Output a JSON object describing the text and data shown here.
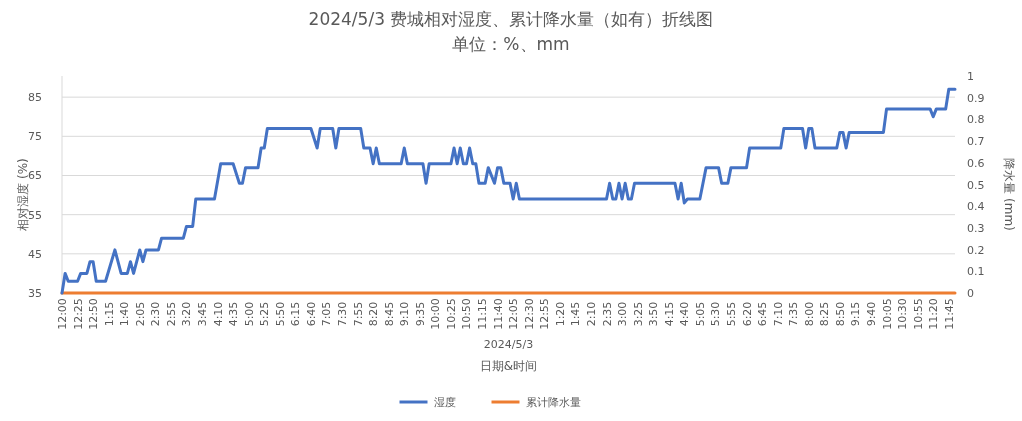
{
  "chart_data": {
    "type": "line",
    "title": "2024/5/3 费城相对湿度、累计降水量（如有）折线图",
    "subtitle": "单位：%、mm",
    "xlabel": "日期&时间",
    "ylabel": "相对湿度 (%)",
    "y2label": "降水量 (mm)",
    "annotations": [
      "2024/5/3"
    ],
    "xlim": [
      "2024-05-03T00:00",
      "2024-05-03T23:55"
    ],
    "xticks": [
      {
        "value": "2024-05-03T00:00",
        "label": "12:00"
      },
      {
        "value": "2024-05-03T00:25",
        "label": "12:25"
      },
      {
        "value": "2024-05-03T00:50",
        "label": "12:50"
      },
      {
        "value": "2024-05-03T01:15",
        "label": "1:15"
      },
      {
        "value": "2024-05-03T01:40",
        "label": "1:40"
      },
      {
        "value": "2024-05-03T02:05",
        "label": "2:05"
      },
      {
        "value": "2024-05-03T02:30",
        "label": "2:30"
      },
      {
        "value": "2024-05-03T02:55",
        "label": "2:55"
      },
      {
        "value": "2024-05-03T03:20",
        "label": "3:20"
      },
      {
        "value": "2024-05-03T03:45",
        "label": "3:45"
      },
      {
        "value": "2024-05-03T04:10",
        "label": "4:10"
      },
      {
        "value": "2024-05-03T04:35",
        "label": "4:35"
      },
      {
        "value": "2024-05-03T05:00",
        "label": "5:00"
      },
      {
        "value": "2024-05-03T05:25",
        "label": "5:25"
      },
      {
        "value": "2024-05-03T05:50",
        "label": "5:50"
      },
      {
        "value": "2024-05-03T06:15",
        "label": "6:15"
      },
      {
        "value": "2024-05-03T06:40",
        "label": "6:40"
      },
      {
        "value": "2024-05-03T07:05",
        "label": "7:05"
      },
      {
        "value": "2024-05-03T07:30",
        "label": "7:30"
      },
      {
        "value": "2024-05-03T07:55",
        "label": "7:55"
      },
      {
        "value": "2024-05-03T08:20",
        "label": "8:20"
      },
      {
        "value": "2024-05-03T08:45",
        "label": "8:45"
      },
      {
        "value": "2024-05-03T09:10",
        "label": "9:10"
      },
      {
        "value": "2024-05-03T09:35",
        "label": "9:35"
      },
      {
        "value": "2024-05-03T10:00",
        "label": "10:00"
      },
      {
        "value": "2024-05-03T10:25",
        "label": "10:25"
      },
      {
        "value": "2024-05-03T10:50",
        "label": "10:50"
      },
      {
        "value": "2024-05-03T11:15",
        "label": "11:15"
      },
      {
        "value": "2024-05-03T11:40",
        "label": "11:40"
      },
      {
        "value": "2024-05-03T12:05",
        "label": "12:05"
      },
      {
        "value": "2024-05-03T12:30",
        "label": "12:30"
      },
      {
        "value": "2024-05-03T12:55",
        "label": "12:55"
      },
      {
        "value": "2024-05-03T13:20",
        "label": "1:20"
      },
      {
        "value": "2024-05-03T13:45",
        "label": "1:45"
      },
      {
        "value": "2024-05-03T14:10",
        "label": "2:10"
      },
      {
        "value": "2024-05-03T14:35",
        "label": "2:35"
      },
      {
        "value": "2024-05-03T15:00",
        "label": "3:00"
      },
      {
        "value": "2024-05-03T15:25",
        "label": "3:25"
      },
      {
        "value": "2024-05-03T15:50",
        "label": "3:50"
      },
      {
        "value": "2024-05-03T16:15",
        "label": "4:15"
      },
      {
        "value": "2024-05-03T16:40",
        "label": "4:40"
      },
      {
        "value": "2024-05-03T17:05",
        "label": "5:05"
      },
      {
        "value": "2024-05-03T17:30",
        "label": "5:30"
      },
      {
        "value": "2024-05-03T17:55",
        "label": "5:55"
      },
      {
        "value": "2024-05-03T18:20",
        "label": "6:20"
      },
      {
        "value": "2024-05-03T18:45",
        "label": "6:45"
      },
      {
        "value": "2024-05-03T19:10",
        "label": "7:10"
      },
      {
        "value": "2024-05-03T19:35",
        "label": "7:35"
      },
      {
        "value": "2024-05-03T20:00",
        "label": "8:00"
      },
      {
        "value": "2024-05-03T20:25",
        "label": "8:25"
      },
      {
        "value": "2024-05-03T20:50",
        "label": "8:50"
      },
      {
        "value": "2024-05-03T21:15",
        "label": "9:15"
      },
      {
        "value": "2024-05-03T21:40",
        "label": "9:40"
      },
      {
        "value": "2024-05-03T22:05",
        "label": "10:05"
      },
      {
        "value": "2024-05-03T22:30",
        "label": "10:30"
      },
      {
        "value": "2024-05-03T22:55",
        "label": "10:55"
      },
      {
        "value": "2024-05-03T23:20",
        "label": "11:20"
      },
      {
        "value": "2024-05-03T23:45",
        "label": "11:45"
      }
    ],
    "ylim": [
      35,
      90.4
    ],
    "yticks": [
      35,
      45,
      55,
      65,
      75,
      85
    ],
    "y2lim": [
      0,
      1
    ],
    "y2ticks": [
      0,
      0.1,
      0.2,
      0.3,
      0.4,
      0.5,
      0.6,
      0.7,
      0.8,
      0.9,
      1
    ],
    "grid": "y",
    "legend": "bottom",
    "marker": "none",
    "line_style": "solid",
    "series": [
      {
        "name": "湿度",
        "color": "#4472c4",
        "x": [
          "2024-05-03T00:00",
          "2024-05-03T00:05",
          "2024-05-03T00:10",
          "2024-05-03T00:25",
          "2024-05-03T00:30",
          "2024-05-03T00:40",
          "2024-05-03T00:45",
          "2024-05-03T00:50",
          "2024-05-03T00:55",
          "2024-05-03T01:10",
          "2024-05-03T01:25",
          "2024-05-03T01:35",
          "2024-05-03T01:45",
          "2024-05-03T01:50",
          "2024-05-03T01:55",
          "2024-05-03T02:05",
          "2024-05-03T02:10",
          "2024-05-03T02:15",
          "2024-05-03T02:35",
          "2024-05-03T02:40",
          "2024-05-03T03:15",
          "2024-05-03T03:20",
          "2024-05-03T03:30",
          "2024-05-03T03:35",
          "2024-05-03T04:05",
          "2024-05-03T04:15",
          "2024-05-03T04:35",
          "2024-05-03T04:45",
          "2024-05-03T04:50",
          "2024-05-03T04:55",
          "2024-05-03T05:15",
          "2024-05-03T05:20",
          "2024-05-03T05:25",
          "2024-05-03T05:30",
          "2024-05-03T06:40",
          "2024-05-03T06:50",
          "2024-05-03T06:55",
          "2024-05-03T07:15",
          "2024-05-03T07:20",
          "2024-05-03T07:25",
          "2024-05-03T08:00",
          "2024-05-03T08:05",
          "2024-05-03T08:15",
          "2024-05-03T08:20",
          "2024-05-03T08:25",
          "2024-05-03T08:30",
          "2024-05-03T09:05",
          "2024-05-03T09:10",
          "2024-05-03T09:15",
          "2024-05-03T09:40",
          "2024-05-03T09:45",
          "2024-05-03T09:50",
          "2024-05-03T10:25",
          "2024-05-03T10:30",
          "2024-05-03T10:35",
          "2024-05-03T10:40",
          "2024-05-03T10:45",
          "2024-05-03T10:50",
          "2024-05-03T10:55",
          "2024-05-03T11:00",
          "2024-05-03T11:05",
          "2024-05-03T11:10",
          "2024-05-03T11:20",
          "2024-05-03T11:25",
          "2024-05-03T11:35",
          "2024-05-03T11:40",
          "2024-05-03T11:45",
          "2024-05-03T11:50",
          "2024-05-03T12:00",
          "2024-05-03T12:05",
          "2024-05-03T12:10",
          "2024-05-03T12:15",
          "2024-05-03T14:35",
          "2024-05-03T14:40",
          "2024-05-03T14:45",
          "2024-05-03T14:50",
          "2024-05-03T14:55",
          "2024-05-03T15:00",
          "2024-05-03T15:05",
          "2024-05-03T15:10",
          "2024-05-03T15:15",
          "2024-05-03T15:20",
          "2024-05-03T16:25",
          "2024-05-03T16:30",
          "2024-05-03T16:35",
          "2024-05-03T16:40",
          "2024-05-03T16:45",
          "2024-05-03T17:05",
          "2024-05-03T17:15",
          "2024-05-03T17:35",
          "2024-05-03T17:40",
          "2024-05-03T17:50",
          "2024-05-03T17:55",
          "2024-05-03T18:20",
          "2024-05-03T18:25",
          "2024-05-03T19:15",
          "2024-05-03T19:20",
          "2024-05-03T19:50",
          "2024-05-03T19:55",
          "2024-05-03T20:00",
          "2024-05-03T20:05",
          "2024-05-03T20:10",
          "2024-05-03T20:45",
          "2024-05-03T20:50",
          "2024-05-03T20:55",
          "2024-05-03T21:00",
          "2024-05-03T21:05",
          "2024-05-03T22:00",
          "2024-05-03T22:05",
          "2024-05-03T23:15",
          "2024-05-03T23:20",
          "2024-05-03T23:25",
          "2024-05-03T23:40",
          "2024-05-03T23:45",
          "2024-05-03T23:55"
        ],
        "values": [
          35,
          40,
          38,
          38,
          40,
          40,
          43,
          43,
          38,
          38,
          46,
          40,
          40,
          43,
          40,
          46,
          43,
          46,
          46,
          49,
          49,
          52,
          52,
          59,
          59,
          68,
          68,
          63,
          63,
          67,
          67,
          72,
          72,
          77,
          77,
          72,
          77,
          77,
          72,
          77,
          77,
          72,
          72,
          68,
          72,
          68,
          68,
          72,
          68,
          68,
          63,
          68,
          68,
          72,
          68,
          72,
          68,
          68,
          72,
          68,
          68,
          63,
          63,
          67,
          63,
          67,
          67,
          63,
          63,
          59,
          63,
          59,
          59,
          63,
          59,
          59,
          63,
          59,
          63,
          59,
          59,
          63,
          63,
          59,
          63,
          58,
          59,
          59,
          67,
          67,
          63,
          63,
          67,
          67,
          72,
          72,
          77,
          77,
          72,
          77,
          77,
          72,
          72,
          76,
          76,
          72,
          76,
          76,
          82,
          82,
          80,
          82,
          82,
          87,
          87
        ]
      },
      {
        "name": "累计降水量",
        "color": "#ed7d31",
        "axis": "y2",
        "x": [
          "2024-05-03T00:00",
          "2024-05-03T23:55"
        ],
        "values": [
          0,
          0
        ]
      }
    ]
  }
}
